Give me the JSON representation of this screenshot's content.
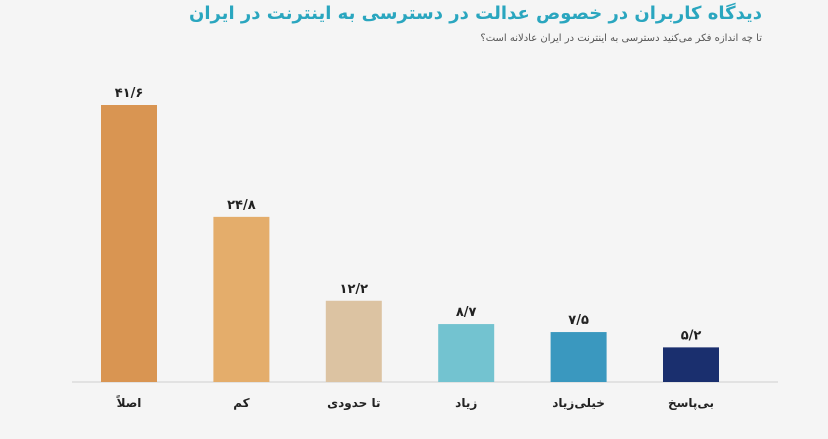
{
  "chart_data": {
    "type": "bar",
    "title": "دیدگاه کاربران در خصوص عدالت در دسترسی به اینترنت در ایران",
    "subtitle": "تا چه اندازه فکر می‌کنید دسترسی به اینترنت در ایران عادلانه است؟",
    "categories": [
      "اصلاً",
      "کم",
      "تا حدودی",
      "زیاد",
      "خیلی‌زیاد",
      "بی‌پاسخ"
    ],
    "values": [
      41.6,
      24.8,
      12.2,
      8.7,
      7.5,
      5.2
    ],
    "value_labels": [
      "۴۱/۶",
      "۲۴/۸",
      "۱۲/۲",
      "۸/۷",
      "۷/۵",
      "۵/۲"
    ],
    "colors": [
      "#d99552",
      "#e4ad6b",
      "#dcc3a2",
      "#73c3d0",
      "#3a98bf",
      "#1a2f6e"
    ],
    "ylim": [
      0,
      45
    ],
    "grid": false,
    "legend": "none"
  }
}
